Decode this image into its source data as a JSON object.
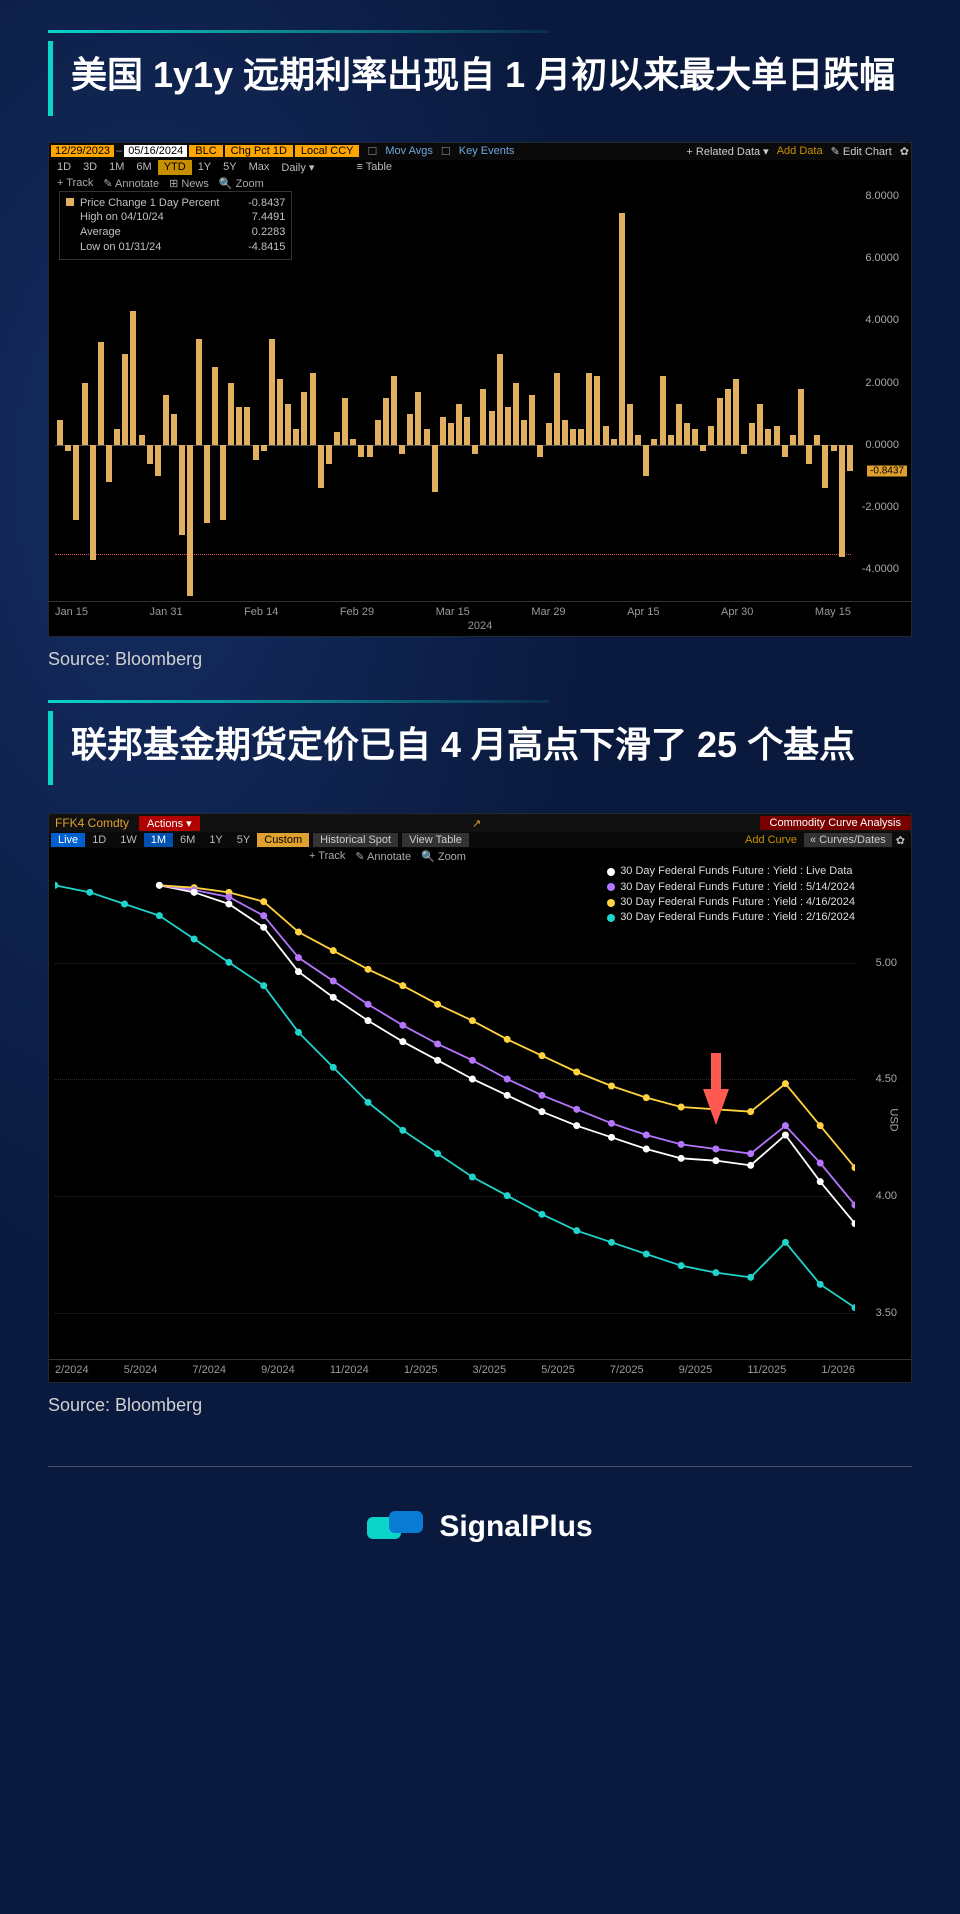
{
  "section1": {
    "title": "美国 1y1y 远期利率出现自 1 月初以来最大单日跌幅",
    "source": "Source: Bloomberg"
  },
  "section2": {
    "title": "联邦基金期货定价已自 4 月高点下滑了 25 个基点",
    "source": "Source: Bloomberg"
  },
  "footer_brand": "SignalPlus",
  "chart1": {
    "type": "bar",
    "date_from": "12/29/2023",
    "date_to": "05/16/2024",
    "pill1": "BLC",
    "pill2": "Chg Pct 1D",
    "pill3": "Local CCY",
    "link_mov": "Mov Avgs",
    "link_key": "Key Events",
    "related": "Related Data",
    "add": "Add Data",
    "edit": "Edit Chart",
    "timeframes": [
      "1D",
      "3D",
      "1M",
      "6M",
      "YTD",
      "1Y",
      "5Y",
      "Max",
      "Daily ▾"
    ],
    "tf_active": "YTD",
    "table_btn": "Table",
    "tools": [
      "+ Track",
      "✎ Annotate",
      "⊞ News",
      "🔍 Zoom"
    ],
    "stats": [
      {
        "label": "Price Change 1 Day Percent",
        "value": "-0.8437",
        "sw": "#e0b060"
      },
      {
        "label": "High on 04/10/24",
        "value": "7.4491"
      },
      {
        "label": "Average",
        "value": "0.2283"
      },
      {
        "label": "Low on 01/31/24",
        "value": "-4.8415"
      }
    ],
    "ylim": [
      -5,
      8
    ],
    "yticks": [
      -4,
      -2,
      0,
      2,
      4,
      6,
      8
    ],
    "marker_value": "-0.8437",
    "red_dash_value": -3.5,
    "bar_color": "#e0b060",
    "bg_color": "#000000",
    "values": [
      0.8,
      -0.2,
      -2.4,
      2.0,
      -3.7,
      3.3,
      -1.2,
      0.5,
      2.9,
      4.3,
      0.3,
      -0.6,
      -1.0,
      1.6,
      1.0,
      -2.9,
      -4.85,
      3.4,
      -2.5,
      2.5,
      -2.4,
      2.0,
      1.2,
      1.2,
      -0.5,
      -0.2,
      3.4,
      2.1,
      1.3,
      0.5,
      1.7,
      2.3,
      -1.4,
      -0.6,
      0.4,
      1.5,
      0.2,
      -0.4,
      -0.4,
      0.8,
      1.5,
      2.2,
      -0.3,
      1.0,
      1.7,
      0.5,
      -1.5,
      0.9,
      0.7,
      1.3,
      0.9,
      -0.3,
      1.8,
      1.1,
      2.9,
      1.2,
      2.0,
      0.8,
      1.6,
      -0.4,
      0.7,
      2.3,
      0.8,
      0.5,
      0.5,
      2.3,
      2.2,
      0.6,
      0.2,
      7.45,
      1.3,
      0.3,
      -1.0,
      0.2,
      2.2,
      0.3,
      1.3,
      0.7,
      0.5,
      -0.2,
      0.6,
      1.5,
      1.8,
      2.1,
      -0.3,
      0.7,
      1.3,
      0.5,
      0.6,
      -0.4,
      0.3,
      1.8,
      -0.6,
      0.3,
      -1.4,
      -0.2,
      -3.6,
      -0.84
    ],
    "xticks": [
      "Jan 15",
      "Jan 31",
      "Feb 14",
      "Feb 29",
      "Mar 15",
      "Mar 29",
      "Apr 15",
      "Apr 30",
      "May 15"
    ],
    "xyear": "2024"
  },
  "chart2": {
    "type": "line",
    "ticker": "FFK4 Comdty",
    "actions": "Actions ▾",
    "panel_title": "Commodity Curve Analysis",
    "external_icon": "↗",
    "curves_dates": "Curves/Dates",
    "add_curve": "Add Curve",
    "gear": "✿",
    "timeframes": [
      "Live",
      "1D",
      "1W",
      "1M",
      "6M",
      "1Y",
      "5Y",
      "Custom"
    ],
    "tf_live": "Live",
    "tf_sel": "1M",
    "tf_custom": "Custom",
    "hist": "Historical Spot",
    "viewtable": "View Table",
    "tools": [
      "+ Track",
      "✎ Annotate",
      "🔍 Zoom"
    ],
    "legend": [
      {
        "color": "#ffffff",
        "label": "30 Day Federal Funds Future : Yield : Live Data"
      },
      {
        "color": "#b675ff",
        "label": "30 Day Federal Funds Future : Yield : 5/14/2024"
      },
      {
        "color": "#ffd23f",
        "label": "30 Day Federal Funds Future : Yield : 4/16/2024"
      },
      {
        "color": "#20d4cc",
        "label": "30 Day Federal Funds Future : Yield : 2/16/2024"
      }
    ],
    "ylim": [
      3.3,
      5.4
    ],
    "yticks": [
      3.5,
      4.0,
      4.5,
      5.0
    ],
    "ylabel": "USD",
    "xticks": [
      "2/2024",
      "5/2024",
      "7/2024",
      "9/2024",
      "11/2024",
      "1/2025",
      "3/2025",
      "5/2025",
      "7/2025",
      "9/2025",
      "11/2025",
      "1/2026"
    ],
    "bg_color": "#000000",
    "grid_color": "#2a2a2a",
    "marker_radius": 3.5,
    "line_width": 1.8,
    "series": {
      "cyan": [
        5.33,
        5.3,
        5.25,
        5.2,
        5.1,
        5.0,
        4.9,
        4.7,
        4.55,
        4.4,
        4.28,
        4.18,
        4.08,
        4.0,
        3.92,
        3.85,
        3.8,
        3.75,
        3.7,
        3.67,
        3.65,
        3.8,
        3.62,
        3.52
      ],
      "yellow": [
        null,
        null,
        null,
        5.33,
        5.32,
        5.3,
        5.26,
        5.13,
        5.05,
        4.97,
        4.9,
        4.82,
        4.75,
        4.67,
        4.6,
        4.53,
        4.47,
        4.42,
        4.38,
        4.37,
        4.36,
        4.48,
        4.3,
        4.12
      ],
      "purple": [
        null,
        null,
        null,
        5.33,
        5.31,
        5.28,
        5.2,
        5.02,
        4.92,
        4.82,
        4.73,
        4.65,
        4.58,
        4.5,
        4.43,
        4.37,
        4.31,
        4.26,
        4.22,
        4.2,
        4.18,
        4.3,
        4.14,
        3.96
      ],
      "white": [
        null,
        null,
        null,
        5.33,
        5.3,
        5.25,
        5.15,
        4.96,
        4.85,
        4.75,
        4.66,
        4.58,
        4.5,
        4.43,
        4.36,
        4.3,
        4.25,
        4.2,
        4.16,
        4.15,
        4.13,
        4.26,
        4.06,
        3.88
      ]
    },
    "arrow_at_index": 19
  }
}
